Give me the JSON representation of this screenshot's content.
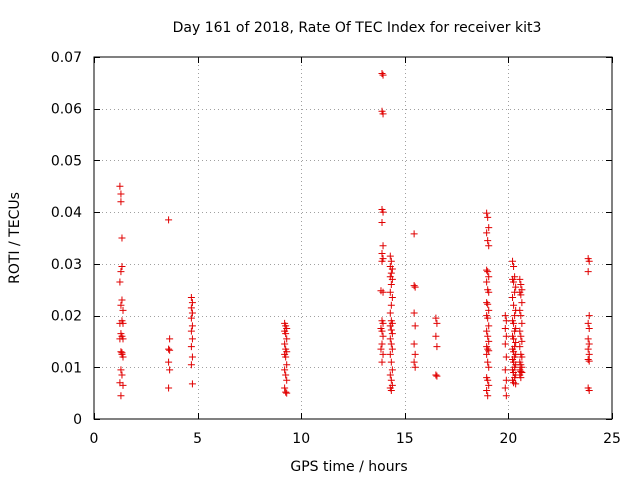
{
  "chart_data": {
    "type": "scatter",
    "title": "Day 161 of 2018, Rate Of TEC Index for receiver kit3",
    "xlabel": "GPS time / hours",
    "ylabel": "ROTI / TECUs",
    "xlim": [
      0,
      25
    ],
    "ylim": [
      0,
      0.07
    ],
    "xticks": [
      0,
      5,
      10,
      15,
      20,
      25
    ],
    "xtick_labels": [
      "0",
      "5",
      "10",
      "15",
      "20",
      "25"
    ],
    "yticks": [
      0,
      0.01,
      0.02,
      0.03,
      0.04,
      0.05,
      0.06,
      0.07
    ],
    "ytick_labels": [
      "0",
      "0.01",
      "0.02",
      "0.03",
      "0.04",
      "0.05",
      "0.06",
      "0.07"
    ],
    "grid": true,
    "marker": "+",
    "color": "#e00000",
    "series": [
      {
        "name": "kit3",
        "points": [
          [
            1.25,
            0.045
          ],
          [
            1.3,
            0.0435
          ],
          [
            1.3,
            0.042
          ],
          [
            1.35,
            0.035
          ],
          [
            1.35,
            0.0295
          ],
          [
            1.3,
            0.0285
          ],
          [
            1.25,
            0.0265
          ],
          [
            1.35,
            0.023
          ],
          [
            1.3,
            0.022
          ],
          [
            1.4,
            0.021
          ],
          [
            1.35,
            0.019
          ],
          [
            1.25,
            0.0185
          ],
          [
            1.4,
            0.0185
          ],
          [
            1.3,
            0.0165
          ],
          [
            1.35,
            0.016
          ],
          [
            1.25,
            0.0155
          ],
          [
            1.4,
            0.0155
          ],
          [
            1.3,
            0.013
          ],
          [
            1.35,
            0.0125
          ],
          [
            1.4,
            0.012
          ],
          [
            1.3,
            0.0095
          ],
          [
            1.35,
            0.0085
          ],
          [
            1.25,
            0.007
          ],
          [
            1.4,
            0.0065
          ],
          [
            1.3,
            0.0045
          ],
          [
            1.35,
            0.0128
          ],
          [
            3.6,
            0.0385
          ],
          [
            3.65,
            0.0155
          ],
          [
            3.6,
            0.0135
          ],
          [
            3.65,
            0.0133
          ],
          [
            3.6,
            0.011
          ],
          [
            3.65,
            0.0095
          ],
          [
            3.6,
            0.006
          ],
          [
            4.7,
            0.0235
          ],
          [
            4.75,
            0.0225
          ],
          [
            4.7,
            0.0215
          ],
          [
            4.75,
            0.0205
          ],
          [
            4.7,
            0.0195
          ],
          [
            4.75,
            0.018
          ],
          [
            4.7,
            0.017
          ],
          [
            4.75,
            0.0155
          ],
          [
            4.7,
            0.014
          ],
          [
            4.75,
            0.012
          ],
          [
            4.7,
            0.0105
          ],
          [
            4.75,
            0.0068
          ],
          [
            9.2,
            0.0185
          ],
          [
            9.25,
            0.018
          ],
          [
            9.3,
            0.0175
          ],
          [
            9.2,
            0.017
          ],
          [
            9.25,
            0.0165
          ],
          [
            9.3,
            0.0155
          ],
          [
            9.2,
            0.0145
          ],
          [
            9.25,
            0.0135
          ],
          [
            9.3,
            0.013
          ],
          [
            9.2,
            0.0125
          ],
          [
            9.25,
            0.012
          ],
          [
            9.3,
            0.0105
          ],
          [
            9.2,
            0.0095
          ],
          [
            9.25,
            0.0085
          ],
          [
            9.3,
            0.0075
          ],
          [
            9.2,
            0.006
          ],
          [
            9.25,
            0.0052
          ],
          [
            9.3,
            0.005
          ],
          [
            13.9,
            0.0668
          ],
          [
            13.95,
            0.0665
          ],
          [
            13.9,
            0.0595
          ],
          [
            13.95,
            0.059
          ],
          [
            13.9,
            0.0405
          ],
          [
            13.95,
            0.04
          ],
          [
            13.9,
            0.038
          ],
          [
            13.95,
            0.0335
          ],
          [
            13.9,
            0.032
          ],
          [
            13.95,
            0.031
          ],
          [
            13.9,
            0.0305
          ],
          [
            13.85,
            0.0248
          ],
          [
            13.95,
            0.0245
          ],
          [
            13.9,
            0.019
          ],
          [
            13.95,
            0.0185
          ],
          [
            13.85,
            0.0175
          ],
          [
            13.9,
            0.017
          ],
          [
            13.95,
            0.016
          ],
          [
            13.9,
            0.0145
          ],
          [
            13.85,
            0.0135
          ],
          [
            13.95,
            0.0125
          ],
          [
            13.9,
            0.011
          ],
          [
            14.3,
            0.0315
          ],
          [
            14.35,
            0.0305
          ],
          [
            14.3,
            0.0295
          ],
          [
            14.4,
            0.029
          ],
          [
            14.35,
            0.0282
          ],
          [
            14.3,
            0.0275
          ],
          [
            14.4,
            0.027
          ],
          [
            14.35,
            0.026
          ],
          [
            14.3,
            0.0245
          ],
          [
            14.4,
            0.0235
          ],
          [
            14.35,
            0.022
          ],
          [
            14.3,
            0.0205
          ],
          [
            14.35,
            0.019
          ],
          [
            14.4,
            0.0185
          ],
          [
            14.3,
            0.018
          ],
          [
            14.35,
            0.0172
          ],
          [
            14.4,
            0.0165
          ],
          [
            14.3,
            0.0155
          ],
          [
            14.35,
            0.0145
          ],
          [
            14.4,
            0.0135
          ],
          [
            14.3,
            0.0125
          ],
          [
            14.35,
            0.011
          ],
          [
            14.4,
            0.0095
          ],
          [
            14.3,
            0.0085
          ],
          [
            14.35,
            0.0075
          ],
          [
            14.4,
            0.0065
          ],
          [
            14.3,
            0.006
          ],
          [
            14.35,
            0.0055
          ],
          [
            15.45,
            0.0358
          ],
          [
            15.45,
            0.0258
          ],
          [
            15.5,
            0.0255
          ],
          [
            15.45,
            0.0205
          ],
          [
            15.5,
            0.018
          ],
          [
            15.45,
            0.0145
          ],
          [
            15.5,
            0.0125
          ],
          [
            15.45,
            0.011
          ],
          [
            15.5,
            0.01
          ],
          [
            16.5,
            0.0195
          ],
          [
            16.55,
            0.0185
          ],
          [
            16.5,
            0.016
          ],
          [
            16.55,
            0.014
          ],
          [
            16.5,
            0.0085
          ],
          [
            16.55,
            0.0083
          ],
          [
            18.95,
            0.0398
          ],
          [
            19.0,
            0.039
          ],
          [
            19.05,
            0.037
          ],
          [
            18.95,
            0.036
          ],
          [
            19.0,
            0.0345
          ],
          [
            19.05,
            0.0335
          ],
          [
            18.95,
            0.0288
          ],
          [
            19.0,
            0.0285
          ],
          [
            19.05,
            0.0275
          ],
          [
            18.95,
            0.0265
          ],
          [
            19.0,
            0.025
          ],
          [
            19.05,
            0.0245
          ],
          [
            18.95,
            0.0225
          ],
          [
            19.0,
            0.0222
          ],
          [
            19.05,
            0.021
          ],
          [
            18.95,
            0.02
          ],
          [
            19.0,
            0.0195
          ],
          [
            19.05,
            0.018
          ],
          [
            18.95,
            0.017
          ],
          [
            19.0,
            0.016
          ],
          [
            19.05,
            0.015
          ],
          [
            18.95,
            0.014
          ],
          [
            19.0,
            0.0135
          ],
          [
            19.05,
            0.0132
          ],
          [
            18.95,
            0.0125
          ],
          [
            19.0,
            0.011
          ],
          [
            19.05,
            0.01
          ],
          [
            18.95,
            0.008
          ],
          [
            19.0,
            0.0075
          ],
          [
            19.05,
            0.0065
          ],
          [
            18.95,
            0.0055
          ],
          [
            19.0,
            0.0045
          ],
          [
            19.85,
            0.02
          ],
          [
            19.9,
            0.019
          ],
          [
            19.85,
            0.0175
          ],
          [
            19.9,
            0.016
          ],
          [
            19.85,
            0.0145
          ],
          [
            19.9,
            0.012
          ],
          [
            19.85,
            0.0095
          ],
          [
            19.9,
            0.0075
          ],
          [
            19.85,
            0.006
          ],
          [
            19.9,
            0.0045
          ],
          [
            20.2,
            0.0305
          ],
          [
            20.25,
            0.0295
          ],
          [
            20.3,
            0.0275
          ],
          [
            20.2,
            0.027
          ],
          [
            20.25,
            0.0265
          ],
          [
            20.35,
            0.0255
          ],
          [
            20.3,
            0.0245
          ],
          [
            20.2,
            0.0235
          ],
          [
            20.25,
            0.022
          ],
          [
            20.35,
            0.021
          ],
          [
            20.3,
            0.02
          ],
          [
            20.2,
            0.019
          ],
          [
            20.25,
            0.0185
          ],
          [
            20.35,
            0.0175
          ],
          [
            20.3,
            0.017
          ],
          [
            20.2,
            0.016
          ],
          [
            20.25,
            0.0155
          ],
          [
            20.35,
            0.0148
          ],
          [
            20.3,
            0.014
          ],
          [
            20.2,
            0.0135
          ],
          [
            20.25,
            0.013
          ],
          [
            20.35,
            0.0125
          ],
          [
            20.3,
            0.012
          ],
          [
            20.2,
            0.0115
          ],
          [
            20.25,
            0.011
          ],
          [
            20.35,
            0.0105
          ],
          [
            20.3,
            0.01
          ],
          [
            20.2,
            0.0095
          ],
          [
            20.25,
            0.009
          ],
          [
            20.35,
            0.0085
          ],
          [
            20.3,
            0.008
          ],
          [
            20.2,
            0.0075
          ],
          [
            20.25,
            0.007
          ],
          [
            20.35,
            0.0068
          ],
          [
            20.55,
            0.027
          ],
          [
            20.6,
            0.026
          ],
          [
            20.65,
            0.025
          ],
          [
            20.55,
            0.0245
          ],
          [
            20.6,
            0.024
          ],
          [
            20.65,
            0.0225
          ],
          [
            20.55,
            0.021
          ],
          [
            20.6,
            0.02
          ],
          [
            20.65,
            0.0185
          ],
          [
            20.55,
            0.017
          ],
          [
            20.6,
            0.016
          ],
          [
            20.65,
            0.015
          ],
          [
            20.55,
            0.014
          ],
          [
            20.6,
            0.0125
          ],
          [
            20.65,
            0.012
          ],
          [
            20.55,
            0.011
          ],
          [
            20.6,
            0.0105
          ],
          [
            20.65,
            0.01
          ],
          [
            20.55,
            0.0095
          ],
          [
            20.6,
            0.0092
          ],
          [
            20.65,
            0.009
          ],
          [
            20.55,
            0.0085
          ],
          [
            20.6,
            0.008
          ],
          [
            23.85,
            0.031
          ],
          [
            23.9,
            0.0305
          ],
          [
            23.85,
            0.0285
          ],
          [
            23.9,
            0.02
          ],
          [
            23.85,
            0.0185
          ],
          [
            23.9,
            0.0175
          ],
          [
            23.85,
            0.0155
          ],
          [
            23.9,
            0.0145
          ],
          [
            23.85,
            0.0135
          ],
          [
            23.9,
            0.0125
          ],
          [
            23.85,
            0.0115
          ],
          [
            23.9,
            0.0112
          ],
          [
            23.85,
            0.006
          ],
          [
            23.9,
            0.0055
          ]
        ]
      }
    ]
  }
}
